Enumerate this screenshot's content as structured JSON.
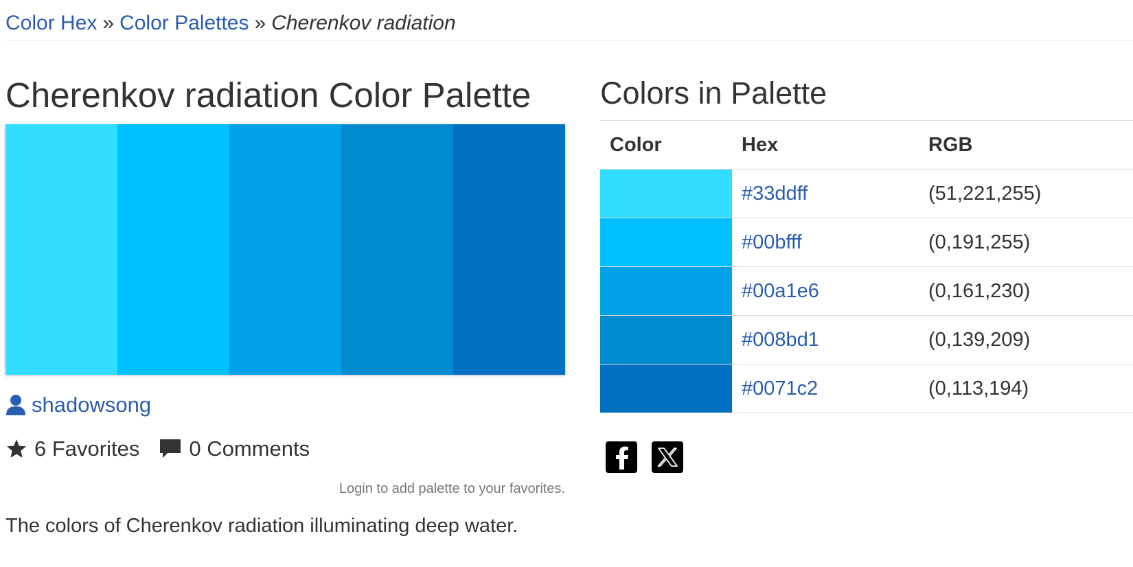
{
  "breadcrumb": {
    "items": [
      "Color Hex",
      "Color Palettes"
    ],
    "separator": "»",
    "current": "Cherenkov radiation"
  },
  "palette": {
    "title": "Cherenkov radiation Color Palette",
    "colors": [
      {
        "hex": "#33ddff",
        "rgb": "(51,221,255)"
      },
      {
        "hex": "#00bfff",
        "rgb": "(0,191,255)"
      },
      {
        "hex": "#00a1e6",
        "rgb": "(0,161,230)"
      },
      {
        "hex": "#008bd1",
        "rgb": "(0,139,209)"
      },
      {
        "hex": "#0071c2",
        "rgb": "(0,113,194)"
      }
    ],
    "author": "shadowsong",
    "favorites_label": "6 Favorites",
    "comments_label": "0 Comments",
    "login_note": "Login to add palette to your favorites.",
    "description": "The colors of Cherenkov radiation illuminating deep water."
  },
  "colors_table": {
    "title": "Colors in Palette",
    "headers": [
      "Color",
      "Hex",
      "RGB"
    ]
  },
  "share": {
    "icons": [
      "facebook-icon",
      "x-icon"
    ]
  },
  "theme": {
    "link_color": "#2a5db0",
    "text_color": "#333333"
  }
}
